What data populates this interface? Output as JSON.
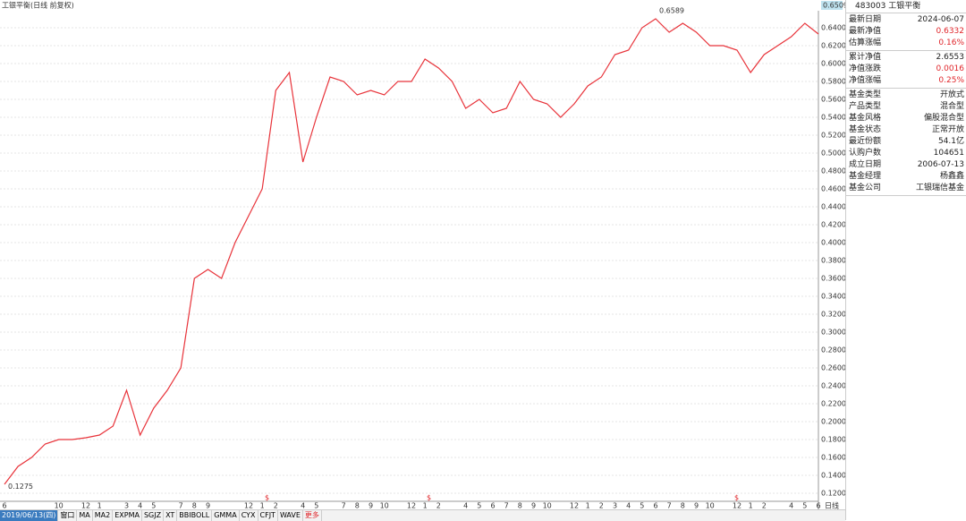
{
  "chart_data": {
    "type": "line",
    "title": "工银平衡(日线 前复权)",
    "categories": [
      "6",
      null,
      null,
      null,
      "10",
      null,
      "12",
      "1",
      null,
      "3",
      "4",
      "5",
      null,
      "7",
      "8",
      "9",
      null,
      null,
      "12",
      "1",
      "2",
      null,
      "4",
      "5",
      null,
      "7",
      "8",
      "9",
      "10",
      null,
      "12",
      "1",
      "2",
      null,
      "4",
      "5",
      "6",
      "7",
      "8",
      "9",
      "10",
      null,
      "12",
      "1",
      "2",
      "3",
      "4",
      "5",
      "6",
      "7",
      "8",
      "9",
      "10",
      null,
      "12",
      "1",
      "2",
      null,
      "4",
      "5",
      "6"
    ],
    "series": [
      {
        "name": "工银平衡",
        "color": "#e8333a",
        "values": [
          0.13,
          0.15,
          0.16,
          0.175,
          0.18,
          0.18,
          0.182,
          0.185,
          0.195,
          0.235,
          0.185,
          0.215,
          0.235,
          0.26,
          0.36,
          0.37,
          0.36,
          0.4,
          0.43,
          0.46,
          0.57,
          0.59,
          0.49,
          0.54,
          0.585,
          0.58,
          0.565,
          0.57,
          0.565,
          0.58,
          0.58,
          0.605,
          0.595,
          0.58,
          0.55,
          0.56,
          0.545,
          0.55,
          0.58,
          0.56,
          0.555,
          0.54,
          0.555,
          0.575,
          0.585,
          0.61,
          0.615,
          0.64,
          0.65,
          0.635,
          0.645,
          0.635,
          0.62,
          0.62,
          0.615,
          0.59,
          0.61,
          0.62,
          0.63,
          0.645,
          0.633
        ]
      }
    ],
    "ylim": [
      0.111,
      0.661
    ],
    "yticks": [
      {
        "value": 0.12,
        "label": "0.1200"
      },
      {
        "value": 0.14,
        "label": "0.1400"
      },
      {
        "value": 0.16,
        "label": "0.1600"
      },
      {
        "value": 0.18,
        "label": "0.1800"
      },
      {
        "value": 0.2,
        "label": "0.2000"
      },
      {
        "value": 0.22,
        "label": "0.2200"
      },
      {
        "value": 0.24,
        "label": "0.2400"
      },
      {
        "value": 0.26,
        "label": "0.2600"
      },
      {
        "value": 0.28,
        "label": "0.2800"
      },
      {
        "value": 0.3,
        "label": "0.3000"
      },
      {
        "value": 0.32,
        "label": "0.3200"
      },
      {
        "value": 0.34,
        "label": "0.3400"
      },
      {
        "value": 0.36,
        "label": "0.3600"
      },
      {
        "value": 0.38,
        "label": "0.3800"
      },
      {
        "value": 0.4,
        "label": "0.4000"
      },
      {
        "value": 0.42,
        "label": "0.4200"
      },
      {
        "value": 0.44,
        "label": "0.4400"
      },
      {
        "value": 0.46,
        "label": "0.4600"
      },
      {
        "value": 0.48,
        "label": "0.4800"
      },
      {
        "value": 0.5,
        "label": "0.5000"
      },
      {
        "value": 0.52,
        "label": "0.5200"
      },
      {
        "value": 0.54,
        "label": "0.5400"
      },
      {
        "value": 0.56,
        "label": "0.5600"
      },
      {
        "value": 0.58,
        "label": "0.5800"
      },
      {
        "value": 0.6,
        "label": "0.6000"
      },
      {
        "value": 0.62,
        "label": "0.6200"
      },
      {
        "value": 0.64,
        "label": "0.6400"
      }
    ],
    "grid": true,
    "annotations": {
      "max": {
        "label": "0.6589",
        "value": 0.6589
      },
      "min": {
        "label": "0.1275",
        "value": 0.1275
      },
      "scale_top": "0.6509",
      "period": "日线",
      "dividend": "$"
    }
  },
  "panel": {
    "header": "483003 工银平衡",
    "groups": [
      [
        [
          "最新日期",
          "2024-06-07",
          false
        ],
        [
          "最新净值",
          "0.6332",
          true
        ],
        [
          "估算涨幅",
          "0.16%",
          true
        ]
      ],
      [
        [
          "累计净值",
          "2.6553",
          false
        ],
        [
          "净值涨跌",
          "0.0016",
          true
        ],
        [
          "净值涨幅",
          "0.25%",
          true
        ]
      ],
      [
        [
          "基金类型",
          "开放式",
          false
        ],
        [
          "产品类型",
          "混合型",
          false
        ],
        [
          "基金风格",
          "偏股混合型",
          false
        ],
        [
          "基金状态",
          "正常开放",
          false
        ],
        [
          "最近份额",
          "54.1亿",
          false
        ],
        [
          "认购户数",
          "104651",
          false
        ],
        [
          "成立日期",
          "2006-07-13",
          false
        ],
        [
          "基金经理",
          "杨鑫鑫",
          false
        ],
        [
          "基金公司",
          "工银瑞信基金",
          false
        ]
      ]
    ]
  },
  "toolbar": {
    "date": "2019/06/13(四)",
    "tabs": [
      "窗口",
      "MA",
      "MA2",
      "EXPMA",
      "SGJZ",
      "XT",
      "BBIBOLL",
      "GMMA",
      "CYX",
      "CFJT",
      "WAVE",
      "更多"
    ]
  }
}
